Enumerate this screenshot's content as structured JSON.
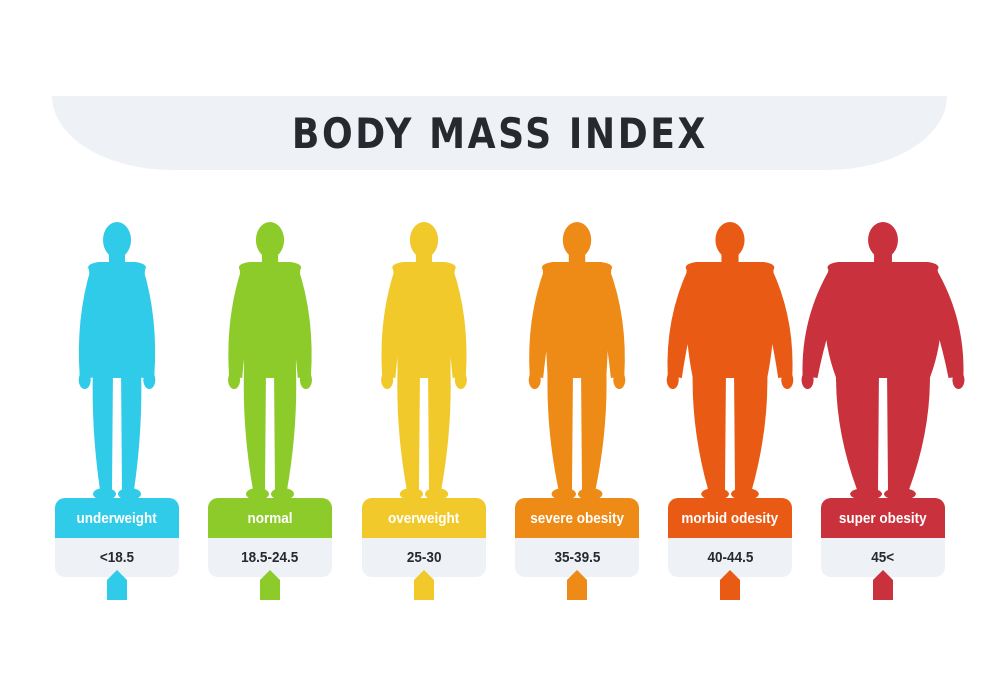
{
  "title": "BODY MASS INDEX",
  "categories": [
    {
      "label": "underweight",
      "range": "<18.5",
      "color": "#2fcbe8"
    },
    {
      "label": "normal",
      "range": "18.5-24.5",
      "color": "#8ccb2a"
    },
    {
      "label": "overweight",
      "range": "25-30",
      "color": "#f2c92a"
    },
    {
      "label": "severe obesity",
      "range": "35-39.5",
      "color": "#ee8a16"
    },
    {
      "label": "morbid odesity",
      "range": "40-44.5",
      "color": "#e95a14"
    },
    {
      "label": "super obesity",
      "range": "45<",
      "color": "#c9313c"
    }
  ]
}
